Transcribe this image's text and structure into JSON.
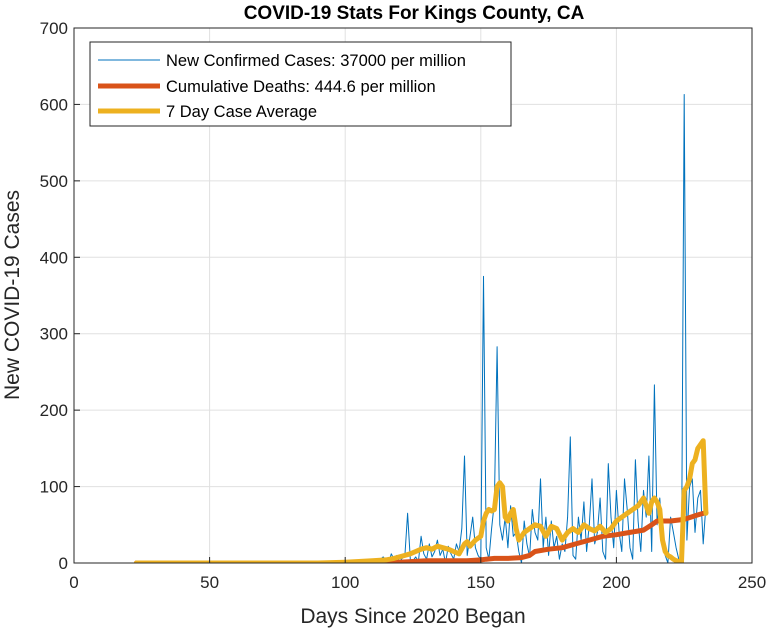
{
  "chart_data": {
    "type": "line",
    "title": "COVID-19 Stats For Kings County, CA",
    "xlabel": "Days Since 2020 Began",
    "ylabel": "New COVID-19 Cases",
    "xlim": [
      0,
      250
    ],
    "ylim": [
      0,
      700
    ],
    "xticks": [
      0,
      50,
      100,
      150,
      200,
      250
    ],
    "yticks": [
      0,
      100,
      200,
      300,
      400,
      500,
      600,
      700
    ],
    "grid": true,
    "legend_position": "top-left",
    "series": [
      {
        "name": "New Confirmed Cases: 37000 per million",
        "color": "#0072BD",
        "style": "thin",
        "x": [
          23,
          30,
          40,
          50,
          60,
          70,
          80,
          90,
          95,
          100,
          103,
          106,
          108,
          110,
          112,
          114,
          116,
          117,
          118,
          119,
          120,
          121,
          122,
          123,
          124,
          125,
          126,
          127,
          128,
          129,
          130,
          131,
          132,
          133,
          134,
          135,
          136,
          137,
          138,
          139,
          140,
          141,
          142,
          143,
          144,
          145,
          146,
          147,
          148,
          149,
          150,
          151,
          152,
          153,
          154,
          155,
          156,
          157,
          158,
          159,
          160,
          161,
          162,
          163,
          164,
          165,
          166,
          167,
          168,
          169,
          170,
          171,
          172,
          173,
          174,
          175,
          176,
          177,
          178,
          179,
          180,
          181,
          182,
          183,
          184,
          185,
          186,
          187,
          188,
          189,
          190,
          191,
          192,
          193,
          194,
          195,
          196,
          197,
          198,
          199,
          200,
          201,
          202,
          203,
          204,
          205,
          206,
          207,
          208,
          209,
          210,
          211,
          212,
          213,
          214,
          215,
          216,
          217,
          218,
          219,
          220,
          221,
          222,
          223,
          224,
          225,
          226,
          227,
          228,
          229,
          230,
          231,
          232,
          233
        ],
        "values": [
          0,
          0,
          0,
          0,
          0,
          0,
          0,
          1,
          1,
          2,
          0,
          3,
          1,
          4,
          2,
          8,
          0,
          12,
          5,
          10,
          2,
          6,
          10,
          65,
          5,
          3,
          8,
          2,
          35,
          12,
          5,
          25,
          8,
          15,
          30,
          10,
          18,
          0,
          22,
          12,
          5,
          25,
          15,
          45,
          140,
          10,
          35,
          60,
          20,
          10,
          5,
          375,
          20,
          5,
          45,
          80,
          283,
          50,
          30,
          60,
          20,
          75,
          35,
          40,
          15,
          0,
          55,
          25,
          8,
          70,
          40,
          30,
          110,
          20,
          60,
          10,
          55,
          20,
          35,
          5,
          25,
          15,
          60,
          165,
          10,
          5,
          60,
          30,
          80,
          15,
          50,
          110,
          25,
          40,
          85,
          15,
          5,
          130,
          60,
          20,
          95,
          40,
          15,
          110,
          70,
          20,
          5,
          135,
          55,
          15,
          95,
          60,
          140,
          15,
          233,
          50,
          85,
          25,
          10,
          0,
          60,
          40,
          20,
          5,
          0,
          613,
          30,
          100,
          110,
          40,
          85,
          95,
          25,
          75
        ]
      },
      {
        "name": "Cumulative Deaths: 444.6 per million",
        "color": "#D95319",
        "style": "thick",
        "x": [
          23,
          50,
          100,
          110,
          120,
          125,
          130,
          135,
          140,
          145,
          150,
          152,
          155,
          160,
          165,
          168,
          170,
          175,
          180,
          185,
          190,
          195,
          200,
          205,
          210,
          213,
          215,
          220,
          225,
          230,
          233
        ],
        "values": [
          0,
          0,
          0,
          0,
          1,
          2,
          3,
          3,
          3,
          3,
          4,
          5,
          6,
          6,
          7,
          10,
          15,
          18,
          20,
          25,
          30,
          35,
          37,
          40,
          43,
          50,
          55,
          55,
          57,
          63,
          66
        ]
      },
      {
        "name": "7 Day Case Average",
        "color": "#EDB120",
        "style": "thick",
        "x": [
          23,
          50,
          90,
          100,
          105,
          110,
          115,
          118,
          120,
          122,
          124,
          126,
          128,
          130,
          132,
          134,
          136,
          138,
          140,
          142,
          144,
          145,
          146,
          148,
          150,
          151,
          152,
          153,
          154,
          155,
          156,
          157,
          158,
          159,
          160,
          161,
          162,
          163,
          164,
          165,
          166,
          168,
          170,
          172,
          174,
          176,
          178,
          180,
          182,
          184,
          186,
          188,
          190,
          192,
          194,
          196,
          198,
          200,
          202,
          204,
          206,
          208,
          209,
          210,
          211,
          212,
          213,
          214,
          215,
          216,
          217,
          218,
          219,
          220,
          221,
          222,
          223,
          224,
          225,
          226,
          227,
          228,
          229,
          230,
          231,
          232,
          233
        ],
        "values": [
          0,
          0,
          0,
          1,
          2,
          3,
          4,
          6,
          8,
          10,
          12,
          15,
          18,
          20,
          18,
          22,
          20,
          18,
          15,
          12,
          25,
          28,
          22,
          30,
          35,
          55,
          65,
          70,
          68,
          70,
          100,
          105,
          100,
          60,
          55,
          65,
          70,
          45,
          30,
          35,
          40,
          45,
          50,
          48,
          35,
          48,
          45,
          30,
          40,
          45,
          40,
          50,
          45,
          42,
          48,
          40,
          45,
          55,
          60,
          65,
          70,
          75,
          80,
          85,
          75,
          65,
          80,
          85,
          80,
          70,
          30,
          15,
          10,
          8,
          5,
          3,
          2,
          1,
          95,
          100,
          110,
          130,
          135,
          150,
          155,
          160,
          65
        ]
      }
    ]
  }
}
